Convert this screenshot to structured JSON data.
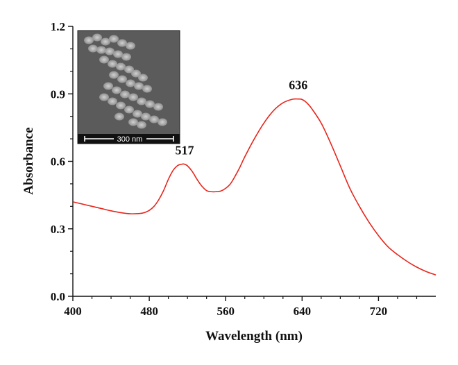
{
  "chart_data": {
    "type": "line",
    "title": "",
    "xlabel": "Wavelength (nm)",
    "ylabel": "Absorbance",
    "xlim": [
      400,
      780
    ],
    "ylim": [
      0,
      1.2
    ],
    "xticks": [
      400,
      480,
      560,
      640,
      720
    ],
    "yticks": [
      0.0,
      0.3,
      0.6,
      0.9,
      1.2
    ],
    "xtick_labels": [
      "400",
      "480",
      "560",
      "640",
      "720"
    ],
    "ytick_labels": [
      "0.0",
      "0.3",
      "0.6",
      "0.9",
      "1.2"
    ],
    "grid": false,
    "legend": "none",
    "series": [
      {
        "color": "#e8251b",
        "x": [
          400,
          410,
          420,
          430,
          440,
          450,
          460,
          470,
          475,
          480,
          485,
          490,
          495,
          500,
          505,
          510,
          515,
          517,
          520,
          525,
          530,
          535,
          540,
          545,
          550,
          555,
          560,
          565,
          570,
          575,
          580,
          590,
          600,
          610,
          620,
          630,
          636,
          640,
          645,
          650,
          660,
          670,
          680,
          690,
          700,
          710,
          720,
          730,
          740,
          750,
          760,
          770,
          780
        ],
        "y": [
          0.42,
          0.41,
          0.4,
          0.39,
          0.38,
          0.372,
          0.367,
          0.368,
          0.372,
          0.382,
          0.4,
          0.43,
          0.47,
          0.52,
          0.56,
          0.582,
          0.588,
          0.587,
          0.58,
          0.555,
          0.52,
          0.49,
          0.47,
          0.465,
          0.465,
          0.468,
          0.48,
          0.5,
          0.535,
          0.575,
          0.62,
          0.7,
          0.77,
          0.825,
          0.86,
          0.876,
          0.877,
          0.875,
          0.86,
          0.835,
          0.77,
          0.68,
          0.58,
          0.48,
          0.4,
          0.33,
          0.27,
          0.22,
          0.185,
          0.155,
          0.13,
          0.11,
          0.095
        ]
      }
    ],
    "annotations": [
      {
        "text": "517",
        "x": 517,
        "y": 0.588
      },
      {
        "text": "636",
        "x": 636,
        "y": 0.877
      }
    ],
    "inset": {
      "type": "image",
      "scale_bar_label": "300 nm"
    }
  }
}
